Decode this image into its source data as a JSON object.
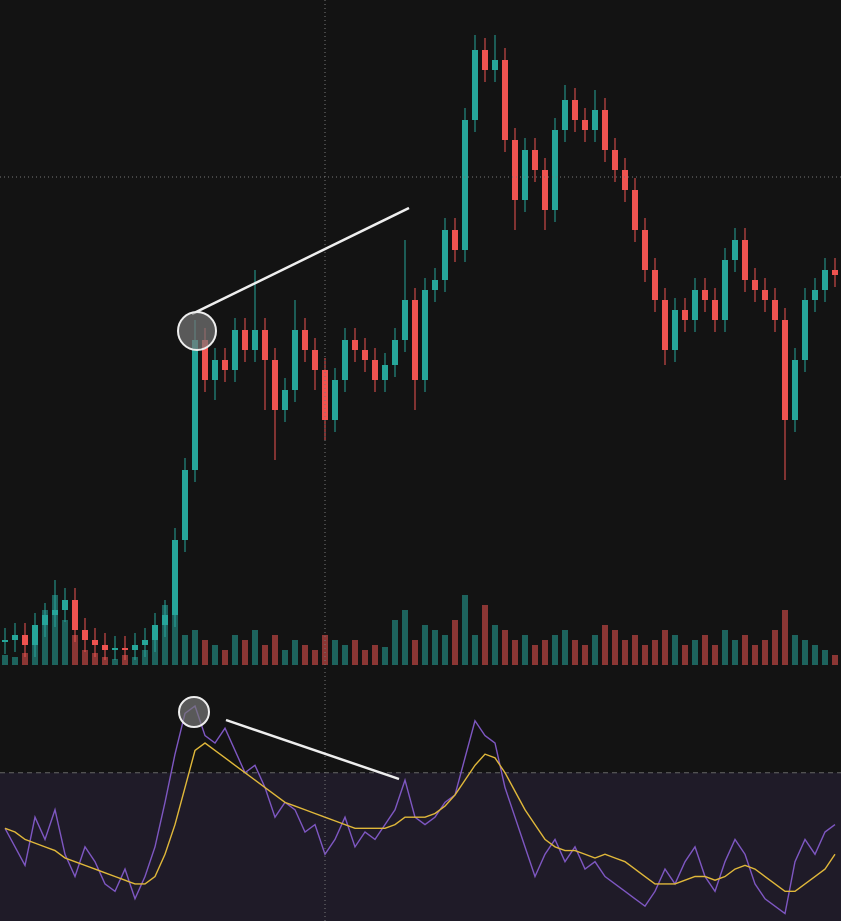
{
  "chart_data": [
    {
      "type": "candlestick",
      "up_color": "#26a69a",
      "down_color": "#ef5350",
      "ylim": [
        0,
        660
      ],
      "open": [
        18,
        20,
        25,
        15,
        35,
        45,
        50,
        60,
        30,
        20,
        15,
        10,
        12,
        10,
        15,
        20,
        35,
        45,
        120,
        190,
        320,
        280,
        300,
        290,
        330,
        310,
        330,
        300,
        250,
        270,
        330,
        310,
        290,
        240,
        280,
        320,
        310,
        300,
        280,
        295,
        320,
        360,
        280,
        370,
        380,
        430,
        410,
        540,
        610,
        590,
        600,
        520,
        460,
        510,
        490,
        450,
        530,
        560,
        540,
        530,
        550,
        510,
        490,
        470,
        430,
        390,
        360,
        310,
        350,
        340,
        370,
        360,
        340,
        400,
        420,
        380,
        370,
        360,
        340,
        240,
        300,
        360,
        370,
        390
      ],
      "high": [
        32,
        37,
        37,
        47,
        57,
        80,
        72,
        72,
        42,
        32,
        27,
        24,
        24,
        27,
        32,
        47,
        60,
        132,
        202,
        340,
        332,
        312,
        312,
        342,
        342,
        390,
        342,
        312,
        282,
        360,
        342,
        322,
        302,
        292,
        332,
        332,
        322,
        312,
        307,
        332,
        420,
        372,
        382,
        392,
        442,
        442,
        552,
        625,
        622,
        625,
        612,
        532,
        522,
        522,
        502,
        542,
        575,
        572,
        552,
        570,
        562,
        522,
        502,
        482,
        442,
        402,
        372,
        362,
        362,
        382,
        382,
        372,
        412,
        432,
        432,
        392,
        382,
        372,
        352,
        312,
        372,
        382,
        402,
        402
      ],
      "low": [
        6,
        8,
        3,
        3,
        23,
        33,
        38,
        18,
        8,
        3,
        0,
        0,
        0,
        0,
        3,
        8,
        23,
        33,
        108,
        178,
        268,
        260,
        278,
        278,
        298,
        298,
        250,
        200,
        238,
        258,
        298,
        270,
        220,
        228,
        268,
        298,
        288,
        268,
        268,
        283,
        308,
        250,
        268,
        358,
        368,
        398,
        398,
        528,
        578,
        578,
        508,
        430,
        448,
        478,
        430,
        438,
        518,
        528,
        518,
        518,
        498,
        478,
        458,
        418,
        378,
        348,
        295,
        298,
        328,
        328,
        348,
        328,
        328,
        388,
        368,
        358,
        348,
        328,
        180,
        228,
        288,
        348,
        358,
        373
      ],
      "close": [
        20,
        25,
        15,
        35,
        45,
        50,
        60,
        30,
        20,
        15,
        10,
        12,
        10,
        15,
        20,
        35,
        45,
        120,
        190,
        320,
        280,
        300,
        290,
        330,
        310,
        330,
        300,
        250,
        270,
        330,
        310,
        290,
        240,
        280,
        320,
        310,
        300,
        280,
        295,
        320,
        360,
        280,
        370,
        380,
        430,
        410,
        540,
        610,
        590,
        600,
        520,
        460,
        510,
        490,
        450,
        530,
        560,
        540,
        530,
        550,
        510,
        490,
        470,
        430,
        390,
        360,
        310,
        350,
        340,
        370,
        360,
        340,
        400,
        420,
        380,
        370,
        360,
        340,
        240,
        300,
        360,
        370,
        390,
        385
      ]
    },
    {
      "type": "bar",
      "ylim": [
        0,
        100
      ],
      "values": [
        10,
        8,
        12,
        40,
        55,
        70,
        45,
        30,
        15,
        12,
        8,
        6,
        10,
        8,
        15,
        40,
        60,
        95,
        30,
        35,
        25,
        20,
        15,
        30,
        25,
        35,
        20,
        30,
        15,
        25,
        20,
        15,
        30,
        25,
        20,
        25,
        15,
        20,
        18,
        45,
        55,
        25,
        40,
        35,
        30,
        45,
        70,
        30,
        60,
        40,
        35,
        25,
        30,
        20,
        25,
        30,
        35,
        25,
        20,
        30,
        40,
        35,
        25,
        30,
        20,
        25,
        35,
        30,
        20,
        25,
        30,
        20,
        35,
        25,
        30,
        20,
        25,
        35,
        55,
        30,
        25,
        20,
        15,
        10
      ]
    },
    {
      "type": "line",
      "ylim": [
        30,
        95
      ],
      "level": 70,
      "band": [
        30,
        70
      ],
      "series": [
        {
          "color": "#7e57c2",
          "values": [
            55,
            50,
            45,
            58,
            52,
            60,
            48,
            42,
            50,
            46,
            40,
            38,
            44,
            36,
            42,
            50,
            62,
            75,
            86,
            88,
            80,
            78,
            82,
            76,
            70,
            72,
            66,
            58,
            62,
            60,
            54,
            56,
            48,
            52,
            58,
            50,
            54,
            52,
            56,
            60,
            68,
            58,
            56,
            58,
            62,
            64,
            74,
            84,
            80,
            78,
            66,
            58,
            50,
            42,
            48,
            52,
            46,
            50,
            44,
            46,
            42,
            40,
            38,
            36,
            34,
            38,
            44,
            40,
            46,
            50,
            42,
            38,
            46,
            52,
            48,
            40,
            36,
            34,
            32,
            46,
            52,
            48,
            54,
            56
          ]
        },
        {
          "color": "#e0b83a",
          "values": [
            55,
            54,
            52,
            51,
            50,
            49,
            47,
            46,
            45,
            44,
            43,
            42,
            41,
            40,
            40,
            42,
            48,
            56,
            66,
            76,
            78,
            76,
            74,
            72,
            70,
            68,
            66,
            64,
            62,
            61,
            60,
            59,
            58,
            57,
            56,
            55,
            55,
            55,
            55,
            56,
            58,
            58,
            58,
            59,
            61,
            64,
            68,
            72,
            75,
            74,
            70,
            65,
            60,
            56,
            52,
            50,
            49,
            49,
            48,
            47,
            48,
            47,
            46,
            44,
            42,
            40,
            40,
            40,
            41,
            42,
            42,
            41,
            42,
            44,
            45,
            44,
            42,
            40,
            38,
            38,
            40,
            42,
            44,
            48
          ]
        }
      ]
    }
  ]
}
